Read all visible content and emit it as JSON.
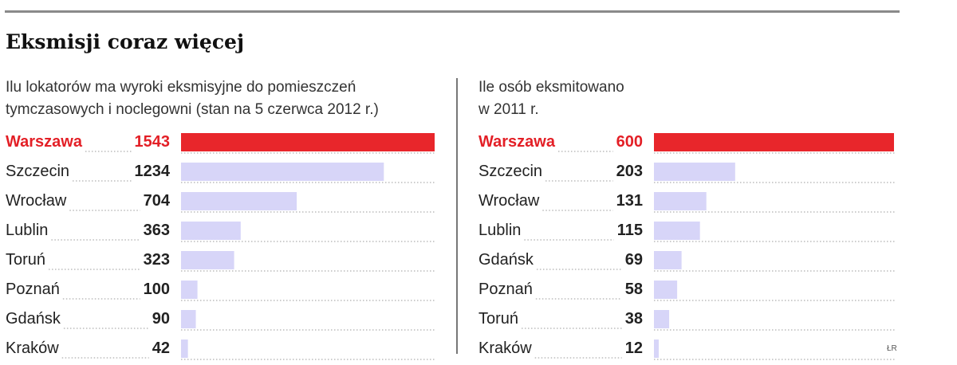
{
  "title": "Eksmisji coraz więcej",
  "credit": "ŁR",
  "colors": {
    "highlight_bar": "#e8262b",
    "bar": "#d7d5f8",
    "highlight_text": "#e31f26",
    "text": "#222222",
    "leader": "#999999"
  },
  "chart_data": [
    {
      "type": "bar",
      "orientation": "horizontal",
      "subtitle_lines": [
        "Ilu lokatorów ma wyroki eksmisyjne do pomieszczeń",
        "tymczasowych i noclegowni (stan na 5 czerwca 2012 r.)"
      ],
      "categories": [
        "Warszawa",
        "Szczecin",
        "Wrocław",
        "Lublin",
        "Toruń",
        "Poznań",
        "Gdańsk",
        "Kraków"
      ],
      "values": [
        1543,
        1234,
        704,
        363,
        323,
        100,
        90,
        42
      ],
      "highlight": "Warszawa",
      "xlim": [
        0,
        1543
      ]
    },
    {
      "type": "bar",
      "orientation": "horizontal",
      "subtitle_lines": [
        "Ile osób eksmitowano",
        "w 2011 r."
      ],
      "categories": [
        "Warszawa",
        "Szczecin",
        "Wrocław",
        "Lublin",
        "Gdańsk",
        "Poznań",
        "Toruń",
        "Kraków"
      ],
      "values": [
        600,
        203,
        131,
        115,
        69,
        58,
        38,
        12
      ],
      "highlight": "Warszawa",
      "xlim": [
        0,
        600
      ]
    }
  ]
}
